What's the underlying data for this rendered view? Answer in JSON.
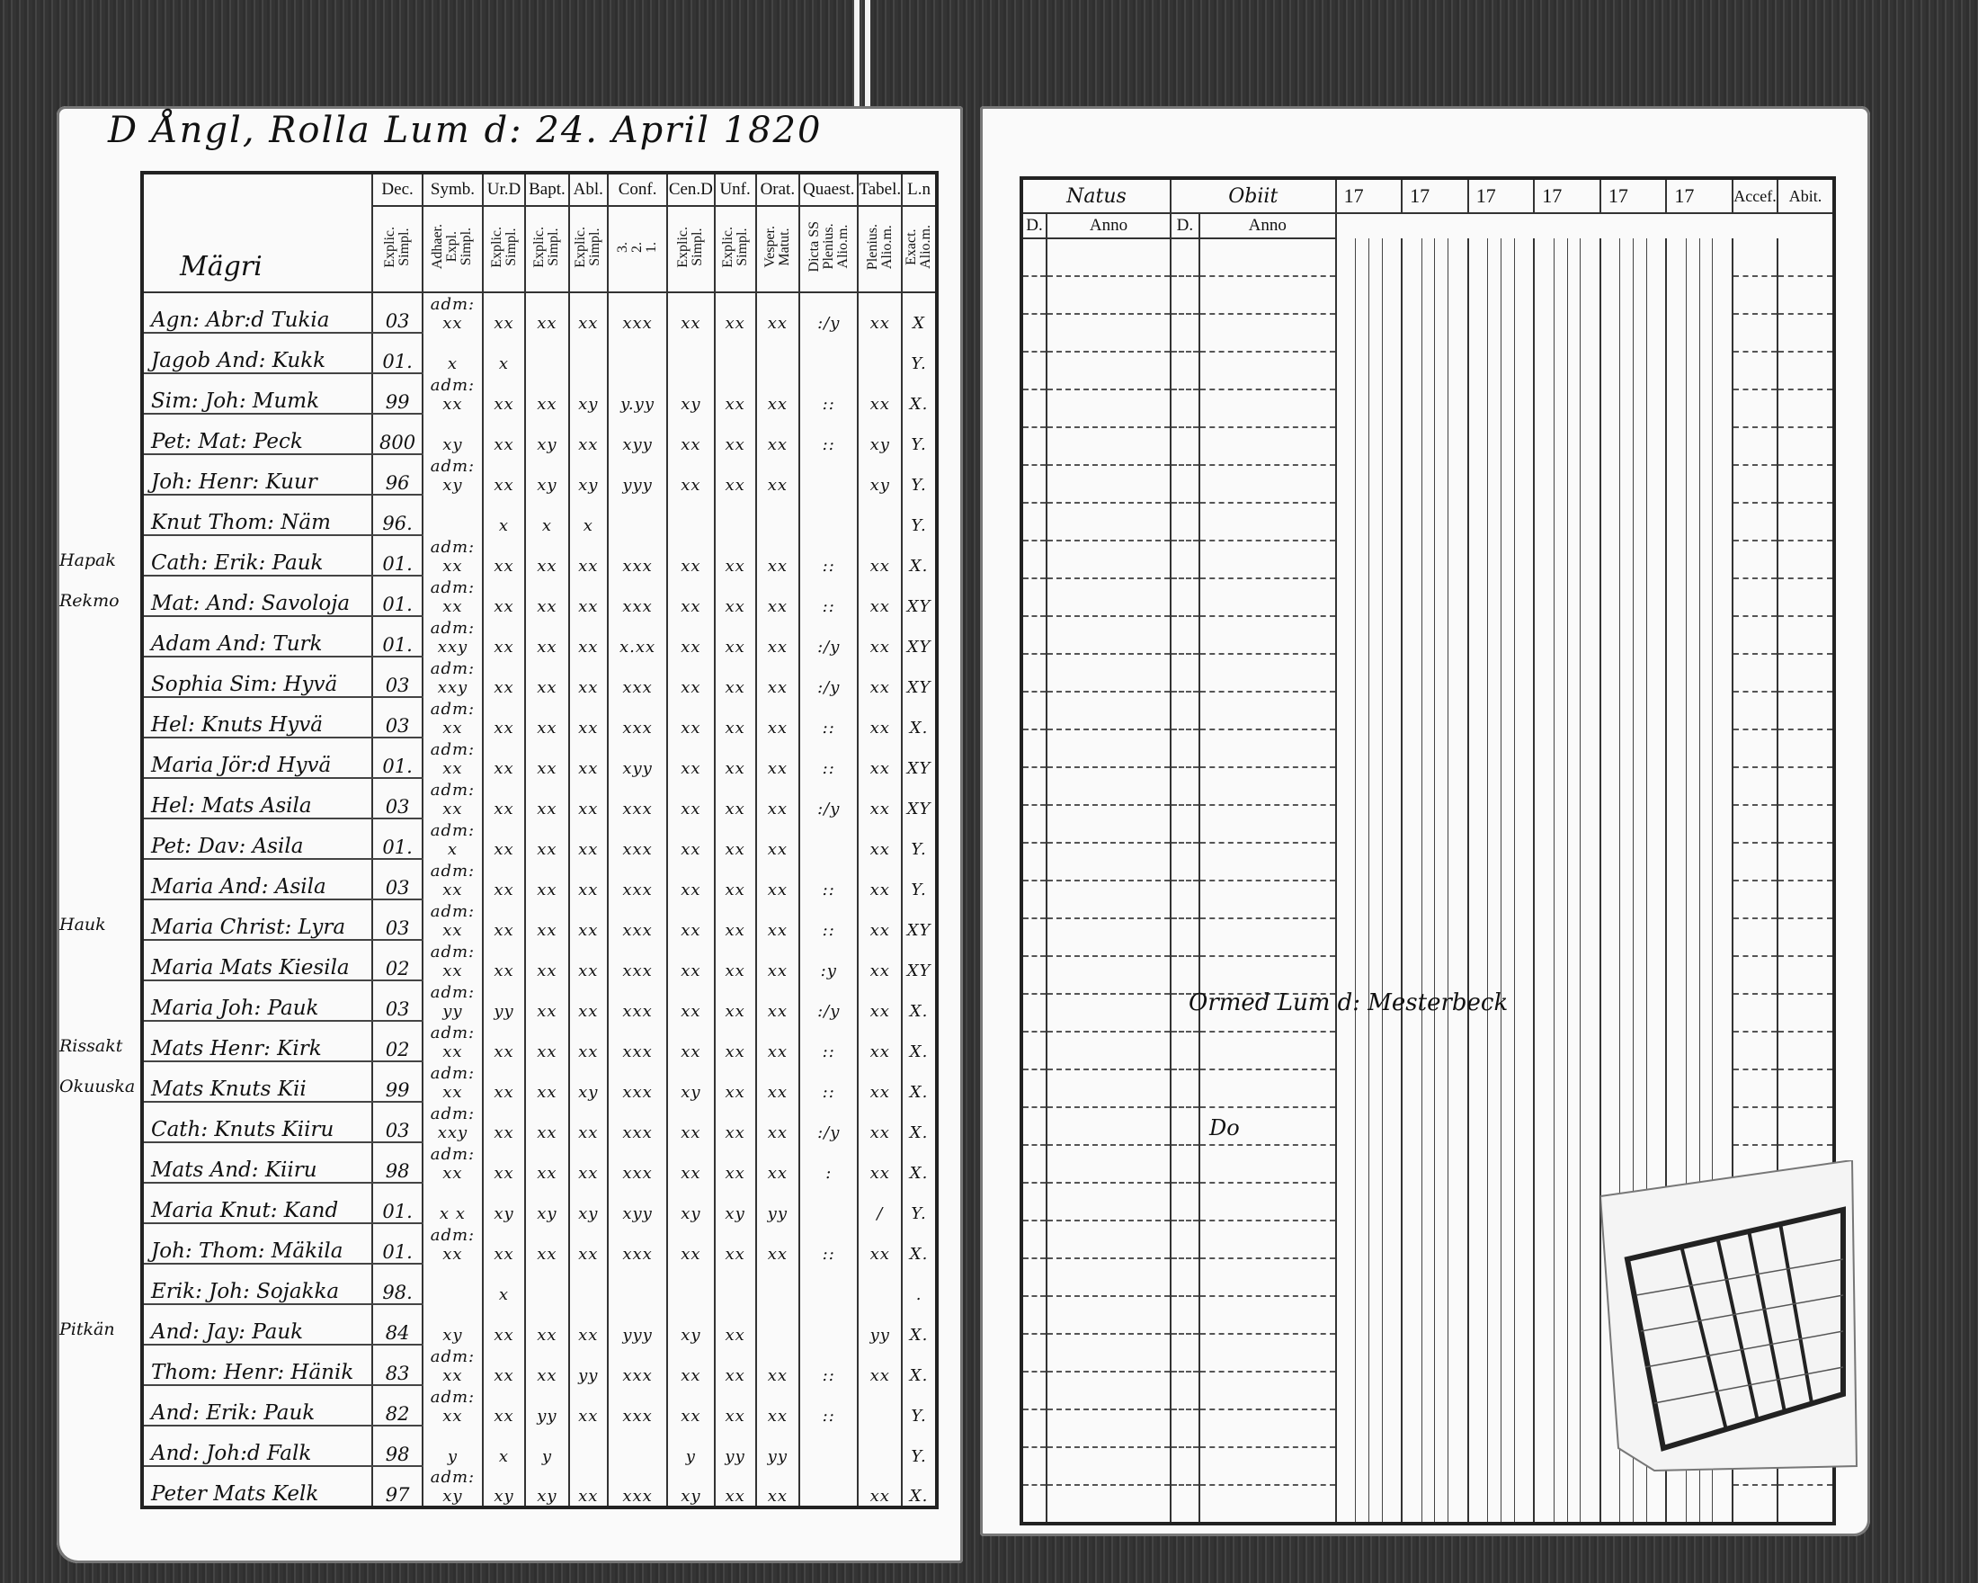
{
  "left_page": {
    "title": "D Ångl, Rolla Lum d: 24. April 1820",
    "section_label": "Mägri",
    "headers": [
      {
        "top": "Dec.",
        "sub": "Explic.\nSimpl."
      },
      {
        "top": "Symb.",
        "sub": "Adhaer.\nExpl.\nSimpl."
      },
      {
        "top": "Ur.D",
        "sub": "Explic.\nSimpl."
      },
      {
        "top": "Bapt.",
        "sub": "Explic.\nSimpl."
      },
      {
        "top": "Abl.",
        "sub": "Explic.\nSimpl."
      },
      {
        "top": "Conf.",
        "sub": "3.\n2.\n1."
      },
      {
        "top": "Cen.D",
        "sub": "Explic.\nSimpl."
      },
      {
        "top": "Unf.",
        "sub": "Explic.\nSimpl."
      },
      {
        "top": "Orat.",
        "sub": "Vesper.\nMatut."
      },
      {
        "top": "Quaest.",
        "sub": "Dicta SS\nPlenius.\nAlio.m."
      },
      {
        "top": "Tabel.",
        "sub": "Plenius.\nAlio.m."
      },
      {
        "top": "L.n",
        "sub": "Exact.\nAlio.m."
      }
    ],
    "rows": [
      {
        "name": "Agn: Abr:d Tukia",
        "dec": "03",
        "margin": "",
        "marks": [
          "adm: xx",
          "xx",
          "xx",
          "xx",
          "xxx",
          "xx",
          "xx",
          "xx",
          ":/y",
          "xx",
          "X"
        ]
      },
      {
        "name": "Jagob And: Kukk",
        "dec": "01.",
        "margin": "",
        "marks": [
          "x",
          "x",
          "",
          "",
          "",
          "",
          "",
          "",
          "",
          "",
          "Y."
        ]
      },
      {
        "name": "Sim: Joh: Mumk",
        "dec": "99",
        "margin": "",
        "marks": [
          "adm: xx",
          "xx",
          "xx",
          "xy",
          "y.yy",
          "xy",
          "xx",
          "xx",
          "::",
          "xx",
          "X."
        ]
      },
      {
        "name": "Pet: Mat: Peck",
        "dec": "800",
        "margin": "",
        "marks": [
          "xy",
          "xx",
          "xy",
          "xx",
          "xyy",
          "xx",
          "xx",
          "xx",
          "::",
          "xy",
          "Y."
        ]
      },
      {
        "name": "Joh: Henr: Kuur",
        "dec": "96",
        "margin": "",
        "marks": [
          "adm: xy",
          "xx",
          "xy",
          "xy",
          "yyy",
          "xx",
          "xx",
          "xx",
          "",
          "xy",
          "Y."
        ]
      },
      {
        "name": "Knut Thom: Näm",
        "dec": "96.",
        "margin": "",
        "marks": [
          "",
          "x",
          "x",
          "x",
          "",
          "",
          "",
          "",
          "",
          "",
          "Y."
        ]
      },
      {
        "name": "Cath: Erik: Pauk",
        "dec": "01.",
        "margin": "Hapak",
        "marks": [
          "adm: xx",
          "xx",
          "xx",
          "xx",
          "xxx",
          "xx",
          "xx",
          "xx",
          "::",
          "xx",
          "X."
        ]
      },
      {
        "name": "Mat: And: Savoloja",
        "dec": "01.",
        "margin": "Rekmo",
        "marks": [
          "adm: xx",
          "xx",
          "xx",
          "xx",
          "xxx",
          "xx",
          "xx",
          "xx",
          "::",
          "xx",
          "XY"
        ]
      },
      {
        "name": "Adam And: Turk",
        "dec": "01.",
        "margin": "",
        "marks": [
          "adm: xxy",
          "xx",
          "xx",
          "xx",
          "x.xx",
          "xx",
          "xx",
          "xx",
          ":/y",
          "xx",
          "XY"
        ]
      },
      {
        "name": "Sophia Sim: Hyvä",
        "dec": "03",
        "margin": "",
        "marks": [
          "adm: xxy",
          "xx",
          "xx",
          "xx",
          "xxx",
          "xx",
          "xx",
          "xx",
          ":/y",
          "xx",
          "XY"
        ]
      },
      {
        "name": "Hel: Knuts Hyvä",
        "dec": "03",
        "margin": "",
        "marks": [
          "adm: xx",
          "xx",
          "xx",
          "xx",
          "xxx",
          "xx",
          "xx",
          "xx",
          "::",
          "xx",
          "X."
        ]
      },
      {
        "name": "Maria Jör:d Hyvä",
        "dec": "01.",
        "margin": "",
        "marks": [
          "adm: xx",
          "xx",
          "xx",
          "xx",
          "xyy",
          "xx",
          "xx",
          "xx",
          "::",
          "xx",
          "XY"
        ]
      },
      {
        "name": "Hel: Mats Asila",
        "dec": "03",
        "margin": "",
        "marks": [
          "adm: xx",
          "xx",
          "xx",
          "xx",
          "xxx",
          "xx",
          "xx",
          "xx",
          ":/y",
          "xx",
          "XY"
        ]
      },
      {
        "name": "Pet: Dav: Asila",
        "dec": "01.",
        "margin": "",
        "marks": [
          "adm: x",
          "xx",
          "xx",
          "xx",
          "xxx",
          "xx",
          "xx",
          "xx",
          "",
          "xx",
          "Y."
        ]
      },
      {
        "name": "Maria And: Asila",
        "dec": "03",
        "margin": "",
        "marks": [
          "adm: xx",
          "xx",
          "xx",
          "xx",
          "xxx",
          "xx",
          "xx",
          "xx",
          "::",
          "xx",
          "Y."
        ]
      },
      {
        "name": "Maria Christ: Lyra",
        "dec": "03",
        "margin": "Hauk",
        "marks": [
          "adm: xx",
          "xx",
          "xx",
          "xx",
          "xxx",
          "xx",
          "xx",
          "xx",
          "::",
          "xx",
          "XY"
        ]
      },
      {
        "name": "Maria Mats Kiesila",
        "dec": "02",
        "margin": "",
        "marks": [
          "adm: xx",
          "xx",
          "xx",
          "xx",
          "xxx",
          "xx",
          "xx",
          "xx",
          ":y",
          "xx",
          "XY"
        ]
      },
      {
        "name": "Maria Joh: Pauk",
        "dec": "03",
        "margin": "",
        "marks": [
          "adm: yy",
          "yy",
          "xx",
          "xx",
          "xxx",
          "xx",
          "xx",
          "xx",
          ":/y",
          "xx",
          "X."
        ]
      },
      {
        "name": "Mats Henr: Kirk",
        "dec": "02",
        "margin": "Rissakt",
        "marks": [
          "adm: xx",
          "xx",
          "xx",
          "xx",
          "xxx",
          "xx",
          "xx",
          "xx",
          "::",
          "xx",
          "X."
        ]
      },
      {
        "name": "Mats Knuts Kii",
        "dec": "99",
        "margin": "Okuuska",
        "marks": [
          "adm: xx",
          "xx",
          "xx",
          "xy",
          "xxx",
          "xy",
          "xx",
          "xx",
          "::",
          "xx",
          "X."
        ]
      },
      {
        "name": "Cath: Knuts Kiiru",
        "dec": "03",
        "margin": "",
        "marks": [
          "adm: xxy",
          "xx",
          "xx",
          "xx",
          "xxx",
          "xx",
          "xx",
          "xx",
          ":/y",
          "xx",
          "X."
        ]
      },
      {
        "name": "Mats And: Kiiru",
        "dec": "98",
        "margin": "",
        "marks": [
          "adm: xx",
          "xx",
          "xx",
          "xx",
          "xxx",
          "xx",
          "xx",
          "xx",
          ":",
          "xx",
          "X."
        ]
      },
      {
        "name": "Maria Knut: Kand",
        "dec": "01.",
        "margin": "",
        "marks": [
          "x x",
          "xy",
          "xy",
          "xy",
          "xyy",
          "xy",
          "xy",
          "yy",
          "",
          "/",
          "Y."
        ]
      },
      {
        "name": "Joh: Thom: Mäkila",
        "dec": "01.",
        "margin": "",
        "marks": [
          "adm: xx",
          "xx",
          "xx",
          "xx",
          "xxx",
          "xx",
          "xx",
          "xx",
          "::",
          "xx",
          "X."
        ]
      },
      {
        "name": "Erik: Joh: Sojakka",
        "dec": "98.",
        "margin": "",
        "marks": [
          "",
          "x",
          "",
          "",
          "",
          "",
          "",
          "",
          "",
          "",
          "."
        ]
      },
      {
        "name": "And: Jay: Pauk",
        "dec": "84",
        "margin": "Pitkän",
        "marks": [
          "xy",
          "xx",
          "xx",
          "xx",
          "yyy",
          "xy",
          "xx",
          "",
          "",
          "yy",
          "X."
        ]
      },
      {
        "name": "Thom: Henr: Hänik",
        "dec": "83",
        "margin": "",
        "marks": [
          "adm: xx",
          "xx",
          "xx",
          "yy",
          "xxx",
          "xx",
          "xx",
          "xx",
          "::",
          "xx",
          "X."
        ]
      },
      {
        "name": "And: Erik: Pauk",
        "dec": "82",
        "margin": "",
        "marks": [
          "adm: xx",
          "xx",
          "yy",
          "xx",
          "xxx",
          "xx",
          "xx",
          "xx",
          "::",
          "",
          "Y."
        ]
      },
      {
        "name": "And: Joh:d Falk",
        "dec": "98",
        "margin": "",
        "marks": [
          "y",
          "x",
          "y",
          "",
          "",
          "y",
          "yy",
          "yy",
          "",
          "",
          "Y."
        ]
      },
      {
        "name": "Peter Mats Kelk",
        "dec": "97",
        "margin": "",
        "marks": [
          "adm: xy",
          "xy",
          "xy",
          "xx",
          "xxx",
          "xy",
          "xx",
          "xx",
          "",
          "xx",
          "X."
        ]
      }
    ]
  },
  "right_page": {
    "headers": {
      "natus": "Natus",
      "obiit": "Obiit",
      "years": [
        "17",
        "17",
        "17",
        "17",
        "17",
        "17"
      ],
      "accef": "Accef.",
      "abit": "Abit.",
      "d_label": "D.",
      "anno_label": "Anno"
    },
    "handwritten_note": "Ormed Lum d: Mesterbeck",
    "handwritten_note2": "Do"
  }
}
